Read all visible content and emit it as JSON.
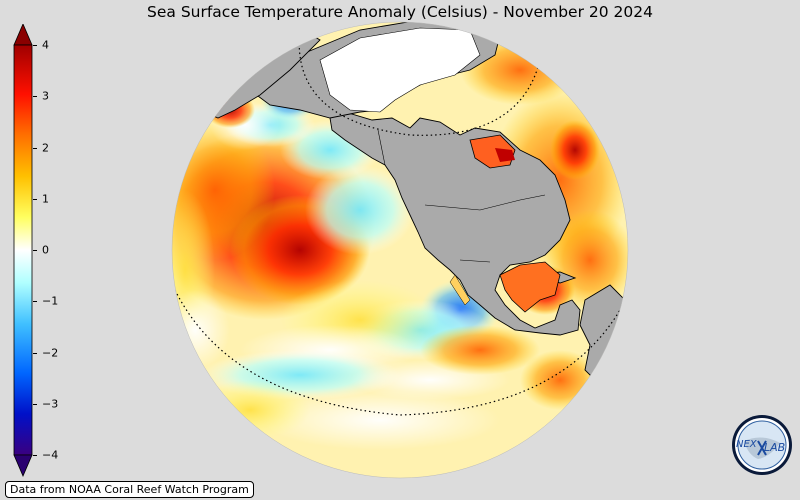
{
  "title": "Sea Surface Temperature Anomaly (Celsius) - November 20 2024",
  "credit": "Data from NOAA Coral Reef Watch Program",
  "logo": {
    "icon": "nexlab-logo",
    "text_left": "NEX",
    "text_right": "LAB"
  },
  "colorbar": {
    "ticks": [
      "4",
      "3",
      "2",
      "1",
      "0",
      "−1",
      "−2",
      "−3",
      "−4"
    ],
    "min": -4,
    "max": 4,
    "colors": [
      "#3a0080",
      "#0010c8",
      "#0066ff",
      "#40c0ff",
      "#b0ffff",
      "#ffffff",
      "#ffff60",
      "#ffc000",
      "#ff7000",
      "#ff1000",
      "#a00000"
    ]
  },
  "map": {
    "projection": "orthographic",
    "ocean_base": "#fff2b0",
    "land": "#aaaaaa",
    "background": "#dcdcdc"
  }
}
